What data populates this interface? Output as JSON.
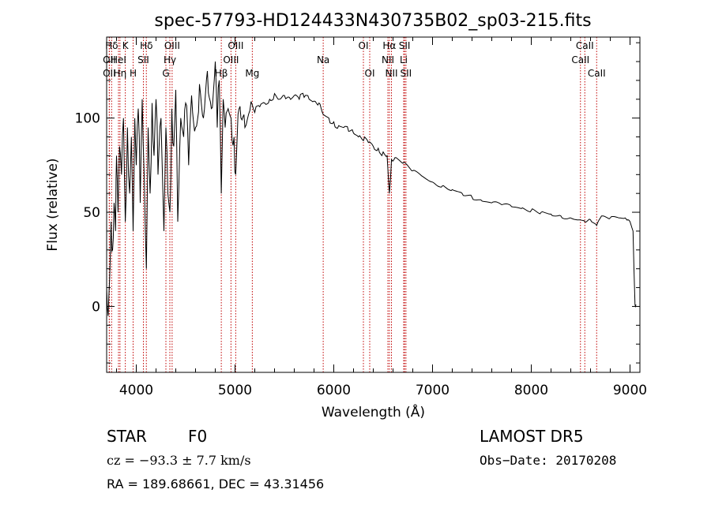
{
  "chart_data": {
    "type": "line",
    "title": "spec-57793-HD124433N430735B02_sp03-215.fits",
    "xlabel": "Wavelength (Å)",
    "ylabel": "Flux (relative)",
    "xlim": [
      3700,
      9100
    ],
    "ylim": [
      -35,
      143
    ],
    "xticks": [
      4000,
      5000,
      6000,
      7000,
      8000,
      9000
    ],
    "yticks": [
      0,
      50,
      100
    ],
    "grid": false,
    "series": [
      {
        "x": [
          3700,
          3715,
          3730,
          3745,
          3760,
          3775,
          3790,
          3800,
          3815,
          3830,
          3850,
          3870,
          3889,
          3910,
          3933,
          3950,
          3968,
          3985,
          4000,
          4020,
          4040,
          4060,
          4080,
          4102,
          4120,
          4140,
          4160,
          4180,
          4200,
          4220,
          4250,
          4280,
          4300,
          4320,
          4341,
          4360,
          4380,
          4400,
          4420,
          4450,
          4480,
          4500,
          4530,
          4560,
          4600,
          4640,
          4680,
          4720,
          4760,
          4800,
          4820,
          4840,
          4861,
          4880,
          4900,
          4930,
          4960,
          4990,
          5007,
          5030,
          5060,
          5100,
          5150,
          5200,
          5250,
          5300,
          5350,
          5400,
          5450,
          5500,
          5550,
          5600,
          5650,
          5700,
          5750,
          5800,
          5850,
          5893,
          5950,
          6000,
          6050,
          6100,
          6150,
          6200,
          6250,
          6300,
          6350,
          6400,
          6450,
          6500,
          6540,
          6563,
          6585,
          6620,
          6700,
          6800,
          6900,
          7000,
          7100,
          7200,
          7300,
          7400,
          7500,
          7600,
          7700,
          7800,
          7900,
          8000,
          8100,
          8200,
          8300,
          8400,
          8498,
          8542,
          8600,
          8662,
          8700,
          8800,
          8900,
          8950,
          8980,
          9000,
          9030,
          9050,
          9060
        ],
        "y": [
          10,
          -5,
          15,
          45,
          30,
          55,
          40,
          80,
          50,
          85,
          70,
          100,
          45,
          95,
          60,
          90,
          40,
          100,
          75,
          105,
          55,
          110,
          70,
          20,
          95,
          60,
          108,
          80,
          110,
          70,
          100,
          40,
          95,
          60,
          50,
          105,
          85,
          115,
          45,
          100,
          90,
          108,
          75,
          112,
          95,
          118,
          100,
          125,
          105,
          130,
          95,
          120,
          60,
          110,
          95,
          105,
          100,
          90,
          70,
          102,
          100,
          95,
          104,
          103,
          106,
          108,
          110,
          113,
          110,
          112,
          111,
          112,
          110,
          111,
          110,
          109,
          108,
          102,
          100,
          98,
          96,
          95,
          93,
          92,
          90,
          88,
          87,
          85,
          84,
          82,
          80,
          60,
          78,
          79,
          76,
          72,
          69,
          66,
          64,
          62,
          60,
          58,
          56,
          55,
          54,
          53,
          52,
          51,
          50,
          49,
          48,
          47,
          46,
          45,
          46,
          43,
          47,
          47,
          47,
          47,
          46,
          45,
          40,
          1,
          1
        ]
      }
    ],
    "spectral_lines": [
      {
        "label": "Hδ",
        "wavelength": 3750,
        "row": 1
      },
      {
        "label": "K",
        "wavelength": 3889,
        "row": 1
      },
      {
        "label": "Hδ",
        "wavelength": 4102,
        "row": 1
      },
      {
        "label": "OIII",
        "wavelength": 4363,
        "row": 1
      },
      {
        "label": "OIII",
        "wavelength": 5007,
        "row": 1
      },
      {
        "label": "OI",
        "wavelength": 6300,
        "row": 1
      },
      {
        "label": "Hα",
        "wavelength": 6563,
        "row": 1
      },
      {
        "label": "SII",
        "wavelength": 6717,
        "row": 1
      },
      {
        "label": "CaII",
        "wavelength": 8542,
        "row": 1
      },
      {
        "label": "OII",
        "wavelength": 3727,
        "row": 2
      },
      {
        "label": "HeI",
        "wavelength": 3820,
        "row": 2
      },
      {
        "label": "SII",
        "wavelength": 4072,
        "row": 2
      },
      {
        "label": "Hγ",
        "wavelength": 4340,
        "row": 2
      },
      {
        "label": "OIII",
        "wavelength": 4959,
        "row": 2
      },
      {
        "label": "Na",
        "wavelength": 5893,
        "row": 2
      },
      {
        "label": "NII",
        "wavelength": 6548,
        "row": 2
      },
      {
        "label": "Li",
        "wavelength": 6708,
        "row": 2
      },
      {
        "label": "CaII",
        "wavelength": 8498,
        "row": 2
      },
      {
        "label": "OII",
        "wavelength": 3727,
        "row": 3
      },
      {
        "label": "Hη",
        "wavelength": 3835,
        "row": 3
      },
      {
        "label": "H",
        "wavelength": 3968,
        "row": 3
      },
      {
        "label": "G",
        "wavelength": 4300,
        "row": 3
      },
      {
        "label": "Hβ",
        "wavelength": 4861,
        "row": 3
      },
      {
        "label": "Mg",
        "wavelength": 5175,
        "row": 3
      },
      {
        "label": "OI",
        "wavelength": 6364,
        "row": 3
      },
      {
        "label": "NII",
        "wavelength": 6584,
        "row": 3
      },
      {
        "label": "SII",
        "wavelength": 6731,
        "row": 3
      },
      {
        "label": "CaII",
        "wavelength": 8662,
        "row": 3
      }
    ],
    "line_color": "#000000",
    "marker_color": "#c00000"
  },
  "info": {
    "object_type": "STAR",
    "spectral_class": "F0",
    "survey": "LAMOST DR5",
    "cz": "cz = −93.3 ± 7.7 km/s",
    "obs_date": "Obs−Date: 20170208",
    "coords": "RA = 189.68661, DEC =  43.31456"
  }
}
